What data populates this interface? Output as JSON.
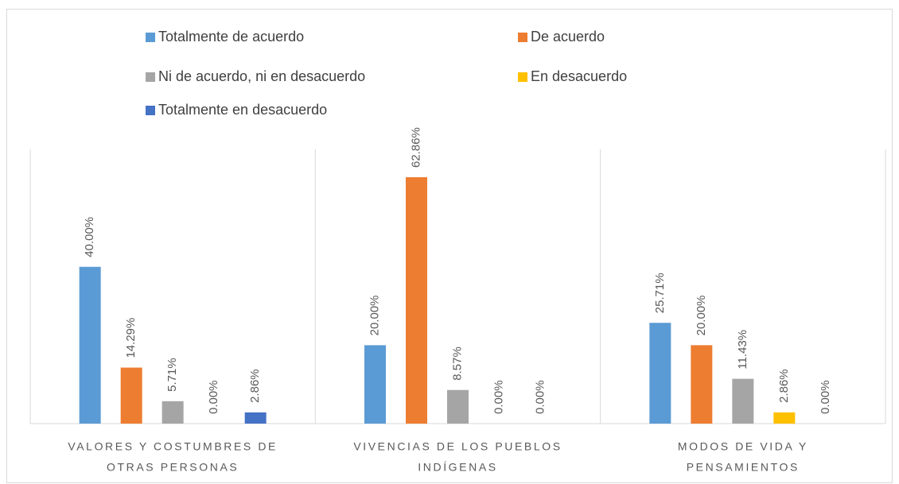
{
  "chart_data": {
    "type": "bar",
    "categories": [
      [
        "VALORES Y COSTUMBRES DE",
        "OTRAS PERSONAS"
      ],
      [
        "VIVENCIAS DE LOS PUEBLOS",
        "INDÍGENAS"
      ],
      [
        "MODOS DE VIDA Y",
        "PENSAMIENTOS"
      ]
    ],
    "series": [
      {
        "name": "Totalmente de acuerdo",
        "color": "#5b9bd5",
        "values": [
          40,
          20,
          25.71
        ],
        "value_labels": [
          "40.00%",
          "20.00%",
          "25.71%"
        ]
      },
      {
        "name": "De acuerdo",
        "color": "#ed7d31",
        "values": [
          14.29,
          62.86,
          20
        ],
        "value_labels": [
          "14.29%",
          "62.86%",
          "20.00%"
        ]
      },
      {
        "name": "Ni de acuerdo, ni en desacuerdo",
        "color": "#a5a5a5",
        "values": [
          5.71,
          8.57,
          11.43
        ],
        "value_labels": [
          "5.71%",
          "8.57%",
          "11.43%"
        ]
      },
      {
        "name": "En desacuerdo",
        "color": "#ffc000",
        "values": [
          0,
          0,
          2.86
        ],
        "value_labels": [
          "0.00%",
          "0.00%",
          "2.86%"
        ]
      },
      {
        "name": "Totalmente en desacuerdo",
        "color": "#4472c4",
        "values": [
          2.86,
          0,
          0
        ],
        "value_labels": [
          "2.86%",
          "0.00%",
          "0.00%"
        ]
      }
    ],
    "legend": "top"
  }
}
